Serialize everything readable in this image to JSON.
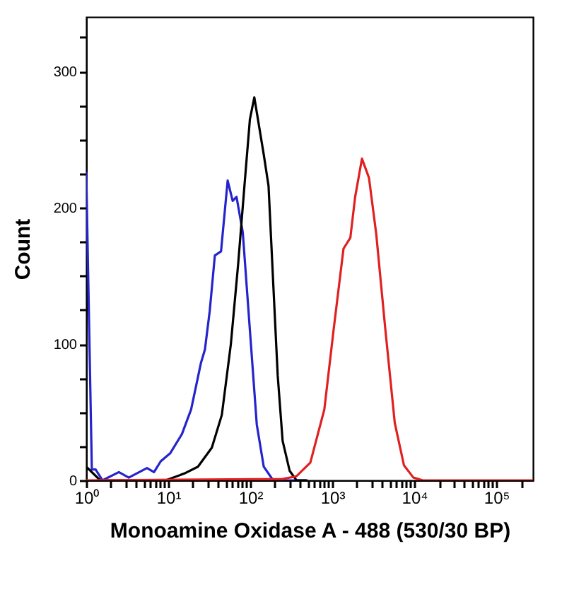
{
  "chart_data": {
    "type": "line",
    "xlabel": "Monoamine Oxidase A - 488 (530/30 BP)",
    "ylabel": "Count",
    "log": "x",
    "grid": false,
    "marker": "none",
    "line_style": "solid",
    "xlim": [
      1,
      280000
    ],
    "ylim": [
      0,
      340
    ],
    "xticks": [
      {
        "value": 1,
        "label": "10⁰"
      },
      {
        "value": 2,
        "label": null
      },
      {
        "value": 3,
        "label": null
      },
      {
        "value": 4,
        "label": null
      },
      {
        "value": 5,
        "label": null
      },
      {
        "value": 6,
        "label": null
      },
      {
        "value": 7,
        "label": null
      },
      {
        "value": 8,
        "label": null
      },
      {
        "value": 9,
        "label": null
      },
      {
        "value": 10,
        "label": "10¹"
      },
      {
        "value": 20,
        "label": null
      },
      {
        "value": 30,
        "label": null
      },
      {
        "value": 40,
        "label": null
      },
      {
        "value": 50,
        "label": null
      },
      {
        "value": 60,
        "label": null
      },
      {
        "value": 70,
        "label": null
      },
      {
        "value": 80,
        "label": null
      },
      {
        "value": 90,
        "label": null
      },
      {
        "value": 100,
        "label": "10²"
      },
      {
        "value": 200,
        "label": null
      },
      {
        "value": 300,
        "label": null
      },
      {
        "value": 400,
        "label": null
      },
      {
        "value": 500,
        "label": null
      },
      {
        "value": 600,
        "label": null
      },
      {
        "value": 700,
        "label": null
      },
      {
        "value": 800,
        "label": null
      },
      {
        "value": 900,
        "label": null
      },
      {
        "value": 1000,
        "label": "10³"
      },
      {
        "value": 2000,
        "label": null
      },
      {
        "value": 3000,
        "label": null
      },
      {
        "value": 4000,
        "label": null
      },
      {
        "value": 5000,
        "label": null
      },
      {
        "value": 6000,
        "label": null
      },
      {
        "value": 7000,
        "label": null
      },
      {
        "value": 8000,
        "label": null
      },
      {
        "value": 9000,
        "label": null
      },
      {
        "value": 10000,
        "label": "10⁴"
      },
      {
        "value": 20000,
        "label": null
      },
      {
        "value": 30000,
        "label": null
      },
      {
        "value": 40000,
        "label": null
      },
      {
        "value": 50000,
        "label": null
      },
      {
        "value": 60000,
        "label": null
      },
      {
        "value": 70000,
        "label": null
      },
      {
        "value": 80000,
        "label": null
      },
      {
        "value": 90000,
        "label": null
      },
      {
        "value": 100000,
        "label": "10⁵"
      },
      {
        "value": 200000,
        "label": null
      }
    ],
    "yticks": [
      0,
      {
        "value": 25,
        "label": null
      },
      {
        "value": 50,
        "label": null
      },
      {
        "value": 75,
        "label": null
      },
      100,
      {
        "value": 125,
        "label": null
      },
      {
        "value": 150,
        "label": null
      },
      {
        "value": 175,
        "label": null
      },
      200,
      {
        "value": 225,
        "label": null
      },
      {
        "value": 250,
        "label": null
      },
      {
        "value": 275,
        "label": null
      },
      300,
      {
        "value": 325,
        "label": null
      }
    ],
    "series": [
      {
        "color": "#2424cc",
        "x": [
          1,
          1.17,
          1.3,
          1.58,
          2.5,
          3.3,
          5.5,
          6.7,
          8.1,
          10.6,
          14.7,
          19,
          25,
          28,
          32,
          37,
          44,
          53,
          61,
          68,
          81,
          99,
          120,
          146,
          190,
          480
        ],
        "values": [
          226,
          8,
          8,
          0,
          6,
          2,
          9,
          6,
          14,
          20,
          34,
          52,
          86,
          96,
          124,
          165,
          168,
          220,
          205,
          208,
          182,
          110,
          41,
          10,
          0,
          0
        ]
      },
      {
        "color": "#000000",
        "x": [
          1,
          1.48,
          9.3,
          15.7,
          23,
          34,
          45,
          58,
          71,
          87,
          99,
          112,
          146,
          167,
          190,
          216,
          248,
          302,
          366,
          500
        ],
        "values": [
          10,
          0,
          0,
          5,
          10,
          24,
          48,
          100,
          158,
          224,
          265,
          281,
          239,
          216,
          146,
          77,
          29,
          7,
          0,
          0
        ]
      },
      {
        "color": "#e02020",
        "x": [
          1,
          248,
          366,
          540,
          800,
          1040,
          1370,
          1660,
          1900,
          2300,
          2800,
          3430,
          4430,
          5780,
          7480,
          9750,
          12700,
          280000
        ],
        "values": [
          0,
          1,
          3,
          13,
          52,
          111,
          170,
          178,
          208,
          236,
          222,
          181,
          111,
          42,
          11,
          2,
          0,
          0
        ]
      }
    ]
  }
}
